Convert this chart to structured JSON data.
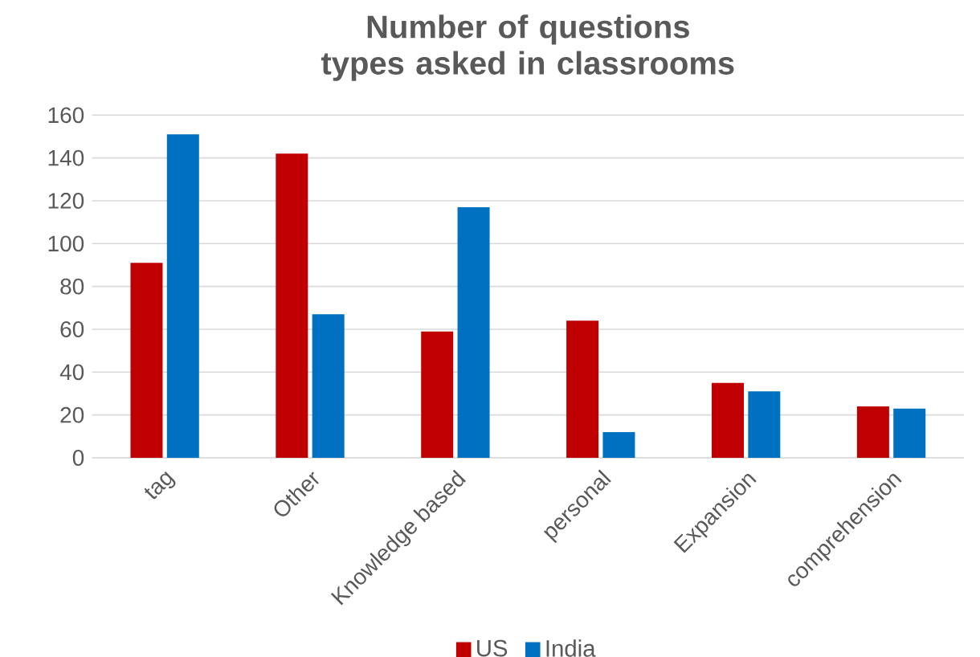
{
  "chart_data": {
    "type": "bar",
    "title": "Number of questions types asked in classrooms",
    "categories": [
      "tag",
      "Other",
      "Knowledge based",
      "personal",
      "Expansion",
      "comprehension"
    ],
    "series": [
      {
        "name": "US",
        "color": "#c00000",
        "values": [
          91,
          142,
          59,
          64,
          35,
          24
        ]
      },
      {
        "name": "India",
        "color": "#0070c0",
        "values": [
          151,
          67,
          117,
          12,
          31,
          23
        ]
      }
    ],
    "ylim": [
      0,
      160
    ],
    "yticks": [
      0,
      20,
      40,
      60,
      80,
      100,
      120,
      140,
      160
    ],
    "grid": "y",
    "legend": "bottom"
  }
}
